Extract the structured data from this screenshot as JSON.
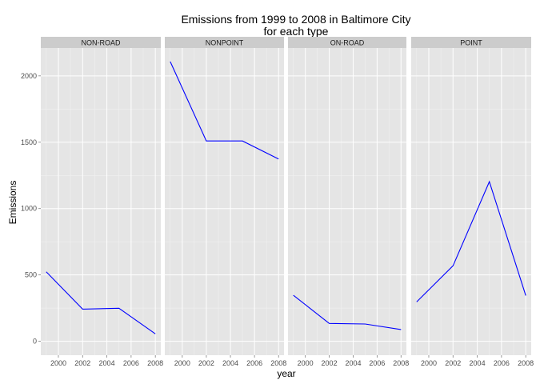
{
  "chart_data": {
    "type": "line",
    "title": "Emissions from 1999 to 2008 in Baltimore City",
    "subtitle": "for each type",
    "xlabel": "year",
    "ylabel": "Emissions",
    "x": [
      1999,
      2002,
      2005,
      2008
    ],
    "xticks": [
      "2000",
      "2002",
      "2004",
      "2006",
      "2008"
    ],
    "yticks": [
      "0",
      "500",
      "1000",
      "1500",
      "2000"
    ],
    "xlim": [
      1998.55,
      2008.45
    ],
    "ylim": [
      -105,
      2210
    ],
    "grid": true,
    "line_color": "#0000ff",
    "panel_background": "#e5e5e5",
    "strip_background": "#cccccc",
    "facets": [
      {
        "name": "NON-ROAD",
        "values": [
          522.9,
          242.0,
          248.9,
          55.8
        ]
      },
      {
        "name": "NONPOINT",
        "values": [
          2107.6,
          1509.5,
          1509.5,
          1373.2
        ]
      },
      {
        "name": "ON-ROAD",
        "values": [
          346.8,
          134.3,
          130.4,
          88.3
        ]
      },
      {
        "name": "POINT",
        "values": [
          296.8,
          569.3,
          1202.5,
          344.98
        ]
      }
    ]
  }
}
